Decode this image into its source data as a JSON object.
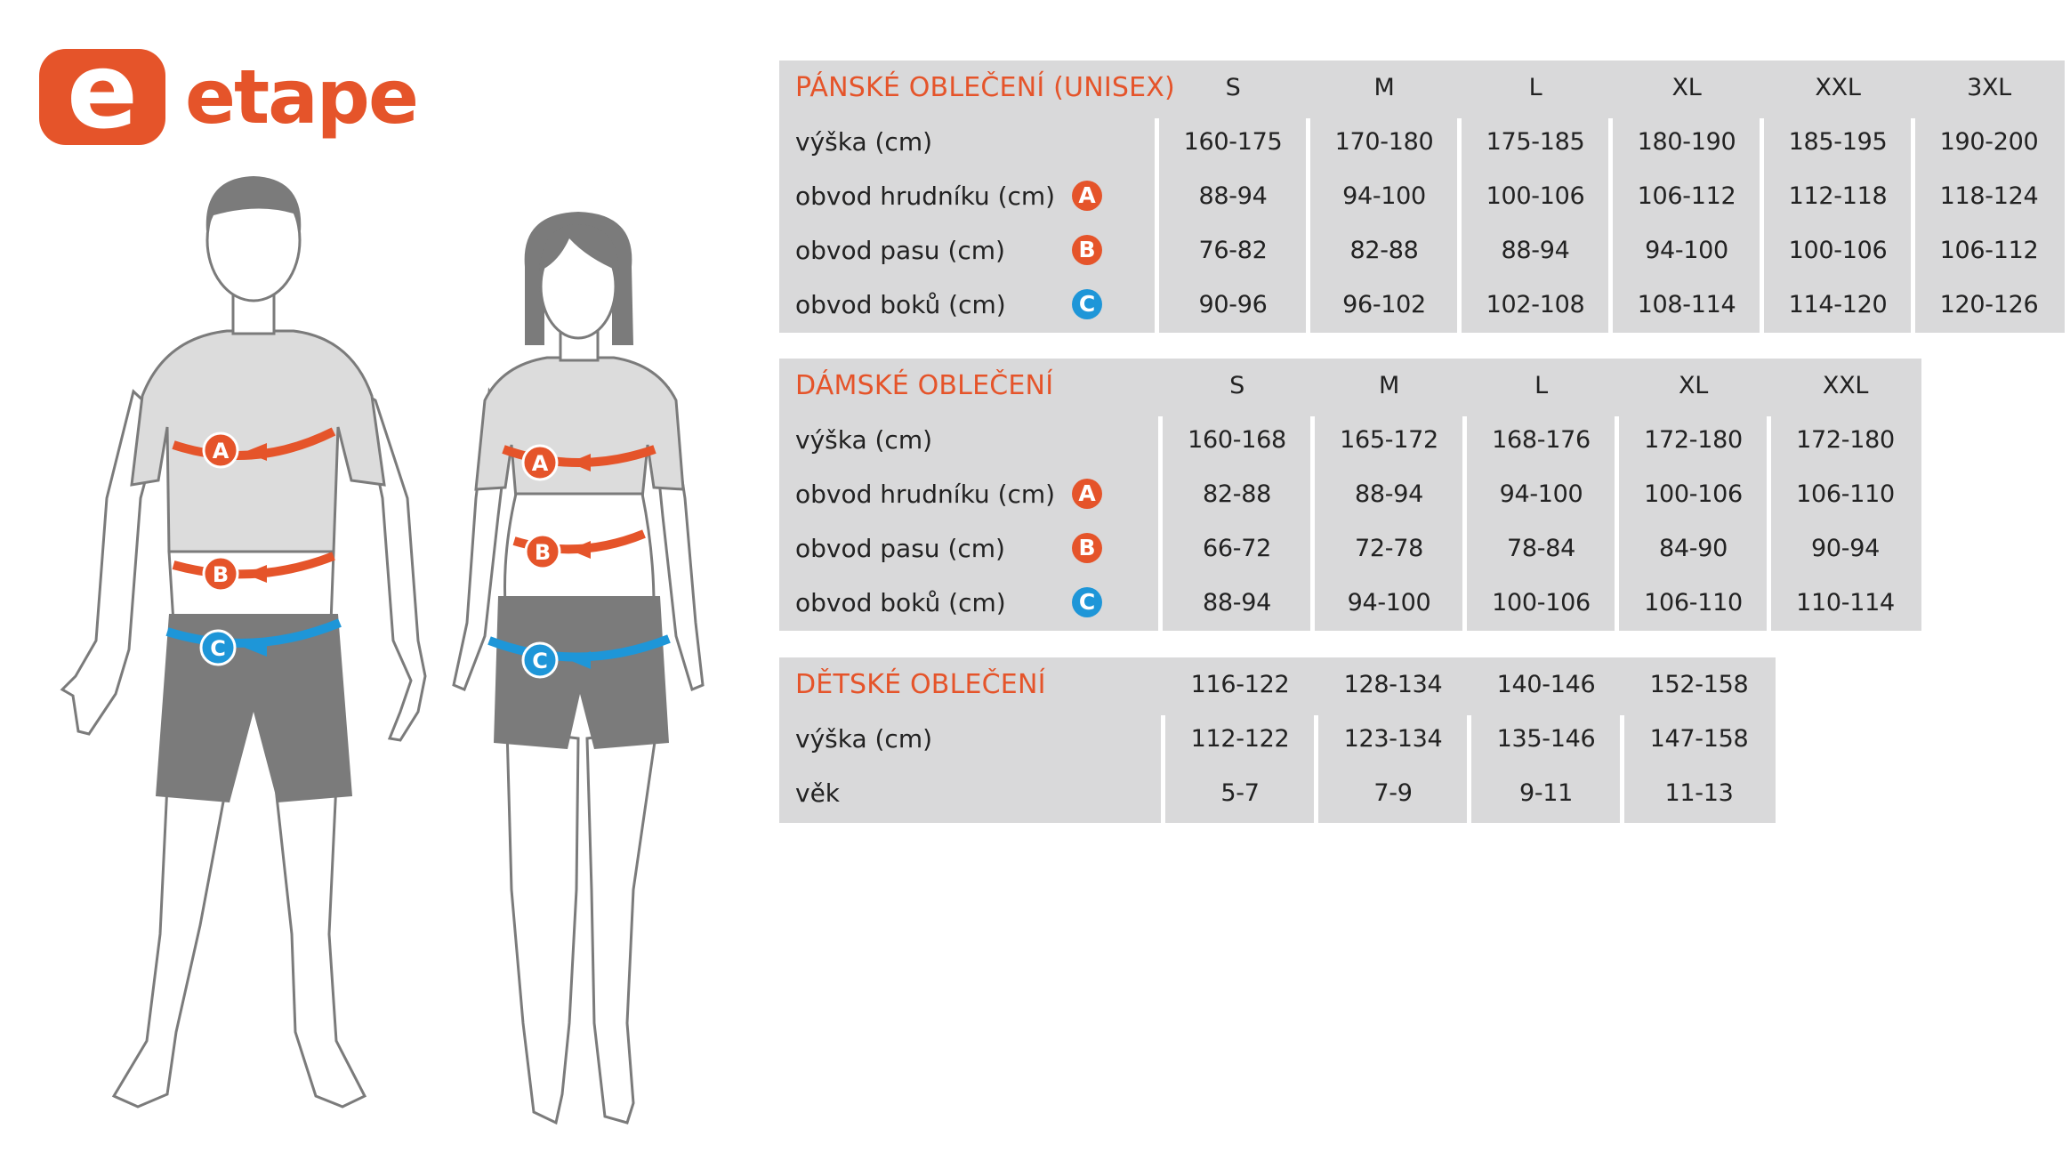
{
  "brand": {
    "logo_text": "etape",
    "logo_letter": "e",
    "color": "#e5542a"
  },
  "colors": {
    "accent": "#e5542a",
    "blue": "#1e96d8",
    "table_bg": "#d9d9da",
    "figure_gray": "#7b7b7b",
    "figure_light": "#dcdcdc"
  },
  "markers": {
    "a": "A",
    "b": "B",
    "c": "C"
  },
  "tables": [
    {
      "title": "PÁNSKÉ OBLEČENÍ (UNISEX)",
      "headers": [
        "S",
        "M",
        "L",
        "XL",
        "XXL",
        "3XL"
      ],
      "rows": [
        {
          "label": "výška (cm)",
          "badge": "",
          "values": [
            "160-175",
            "170-180",
            "175-185",
            "180-190",
            "185-195",
            "190-200"
          ]
        },
        {
          "label": "obvod hrudníku (cm)",
          "badge": "A",
          "values": [
            "88-94",
            "94-100",
            "100-106",
            "106-112",
            "112-118",
            "118-124"
          ]
        },
        {
          "label": "obvod pasu (cm)",
          "badge": "B",
          "values": [
            "76-82",
            "82-88",
            "88-94",
            "94-100",
            "100-106",
            "106-112"
          ]
        },
        {
          "label": "obvod boků (cm)",
          "badge": "C",
          "values": [
            "90-96",
            "96-102",
            "102-108",
            "108-114",
            "114-120",
            "120-126"
          ]
        }
      ]
    },
    {
      "title": "DÁMSKÉ OBLEČENÍ",
      "headers": [
        "S",
        "M",
        "L",
        "XL",
        "XXL"
      ],
      "rows": [
        {
          "label": "výška (cm)",
          "badge": "",
          "values": [
            "160-168",
            "165-172",
            "168-176",
            "172-180",
            "172-180"
          ]
        },
        {
          "label": "obvod hrudníku (cm)",
          "badge": "A",
          "values": [
            "82-88",
            "88-94",
            "94-100",
            "100-106",
            "106-110"
          ]
        },
        {
          "label": "obvod pasu (cm)",
          "badge": "B",
          "values": [
            "66-72",
            "72-78",
            "78-84",
            "84-90",
            "90-94"
          ]
        },
        {
          "label": "obvod boků (cm)",
          "badge": "C",
          "values": [
            "88-94",
            "94-100",
            "100-106",
            "106-110",
            "110-114"
          ]
        }
      ]
    },
    {
      "title": "DĚTSKÉ OBLEČENÍ",
      "headers": [
        "116-122",
        "128-134",
        "140-146",
        "152-158"
      ],
      "rows": [
        {
          "label": "výška (cm)",
          "badge": "",
          "values": [
            "112-122",
            "123-134",
            "135-146",
            "147-158"
          ]
        },
        {
          "label": "věk",
          "badge": "",
          "values": [
            "5-7",
            "7-9",
            "9-11",
            "11-13"
          ]
        }
      ]
    }
  ]
}
